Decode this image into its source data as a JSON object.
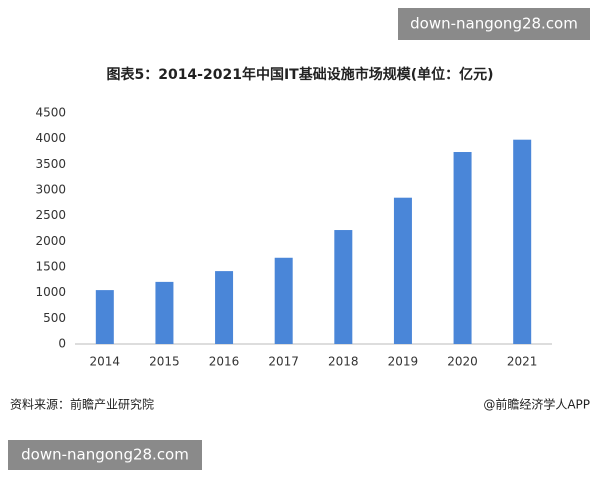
{
  "chart_data": {
    "type": "bar",
    "title": "图表5：2014-2021年中国IT基础设施市场规模(单位：亿元)",
    "categories": [
      "2014",
      "2015",
      "2016",
      "2017",
      "2018",
      "2019",
      "2020",
      "2021"
    ],
    "values": [
      1050,
      1210,
      1420,
      1680,
      2220,
      2850,
      3740,
      3980
    ],
    "color": "#4a86d8",
    "ylim": [
      0,
      4500
    ],
    "yticks": [
      0,
      500,
      1000,
      1500,
      2000,
      2500,
      3000,
      3500,
      4000,
      4500
    ],
    "grid": false
  },
  "source": "资料来源：前瞻产业研究院",
  "credit": "@前瞻经济学人APP",
  "watermarks": [
    "down-nangong28.com",
    "down-nangong28.com"
  ]
}
